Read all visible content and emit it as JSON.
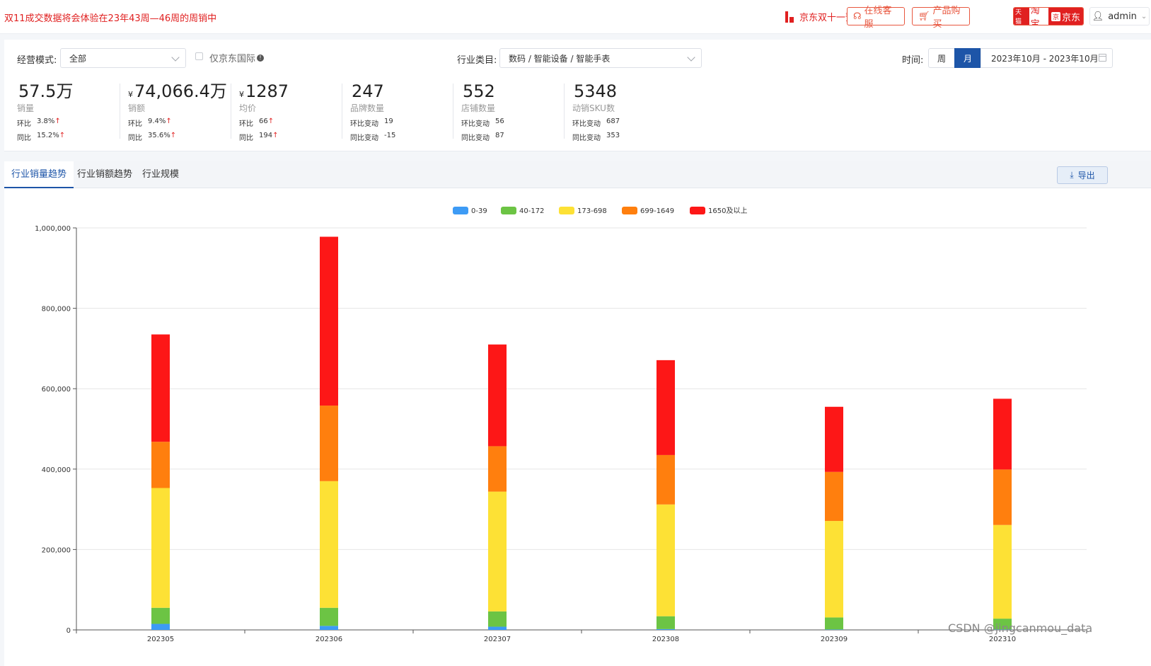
{
  "topbar": {
    "notice": "双11成交数据将会体验在23年43周—46周的周销中",
    "presale": "京东双十一预售",
    "service_btn": "在线客服",
    "buy_btn": "产品购买",
    "platform_taobao": "淘宝",
    "platform_taobao_tag": "天猫",
    "platform_jd": "京东",
    "platform_jd_tag": "京",
    "admin": "admin",
    "brand_color": "#e02020"
  },
  "filters": {
    "mode_label": "经营模式:",
    "mode_value": "全部",
    "jd_intl_label": "仅京东国际",
    "category_label": "行业类目:",
    "category_value": "数码 / 智能设备 / 智能手表",
    "time_label": "时间:",
    "week": "周",
    "month": "月",
    "date_range": "2023年10月 - 2023年10月"
  },
  "kpis": [
    {
      "value": "57.5万",
      "yen": "",
      "label": "销量",
      "r1k": "环比",
      "r1v": "3.8%",
      "r1u": "↑",
      "r2k": "同比",
      "r2v": "15.2%",
      "r2u": "↑"
    },
    {
      "value": "74,066.4万",
      "yen": "¥",
      "label": "销额",
      "r1k": "环比",
      "r1v": "9.4%",
      "r1u": "↑",
      "r2k": "同比",
      "r2v": "35.6%",
      "r2u": "↑"
    },
    {
      "value": "1287",
      "yen": "¥",
      "label": "均价",
      "r1k": "环比",
      "r1v": "66",
      "r1u": "↑",
      "r2k": "同比",
      "r2v": "194",
      "r2u": "↑"
    },
    {
      "value": "247",
      "yen": "",
      "label": "品牌数量",
      "r1k": "环比变动",
      "r1v": "19",
      "r1u": "",
      "r2k": "同比变动",
      "r2v": "-15",
      "r2u": ""
    },
    {
      "value": "552",
      "yen": "",
      "label": "店铺数量",
      "r1k": "环比变动",
      "r1v": "56",
      "r1u": "",
      "r2k": "同比变动",
      "r2v": "87",
      "r2u": ""
    },
    {
      "value": "5348",
      "yen": "",
      "label": "动销SKU数",
      "r1k": "环比变动",
      "r1v": "687",
      "r1u": "",
      "r2k": "同比变动",
      "r2v": "353",
      "r2u": ""
    }
  ],
  "tabs": [
    "行业销量趋势",
    "行业销额趋势",
    "行业规模"
  ],
  "export_label": "导出",
  "watermark": "CSDN @jingcanmou_data",
  "chart_data": {
    "type": "bar",
    "stacked": true,
    "categories": [
      "202305",
      "202306",
      "202307",
      "202308",
      "202309",
      "202310"
    ],
    "ylim": [
      0,
      1000000
    ],
    "yticks": [
      "0",
      "200,000",
      "400,000",
      "600,000",
      "800,000",
      "1,000,000"
    ],
    "legend_position": "top-center",
    "grid": true,
    "series": [
      {
        "name": "0-39",
        "color": "#3d9bf5",
        "values": [
          15000,
          10000,
          8000,
          2000,
          1000,
          1000
        ]
      },
      {
        "name": "40-172",
        "color": "#6cc444",
        "values": [
          40000,
          45000,
          38000,
          32000,
          30000,
          27000
        ]
      },
      {
        "name": "173-698",
        "color": "#fde135",
        "values": [
          298000,
          315000,
          298000,
          278000,
          240000,
          233000
        ]
      },
      {
        "name": "699-1649",
        "color": "#ff7f0e",
        "values": [
          115000,
          188000,
          113000,
          123000,
          122000,
          138000
        ]
      },
      {
        "name": "1650及以上",
        "color": "#fd1717",
        "values": [
          267000,
          420000,
          253000,
          236000,
          162000,
          176000
        ]
      }
    ]
  }
}
